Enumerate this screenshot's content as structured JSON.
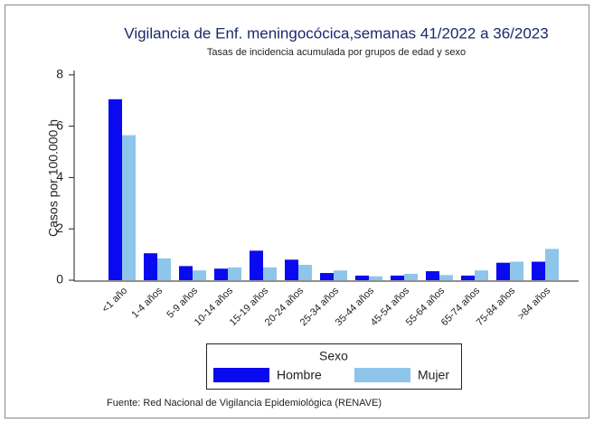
{
  "chart_data": {
    "type": "bar",
    "title": "Vigilancia de Enf. meningocócica,semanas 41/2022 a 36/2023",
    "subtitle": "Tasas de incidencia acumulada por grupos de edad y sexo",
    "y_label": "Casos por 100.000 h",
    "categories": [
      "<1 año",
      "1-4 años",
      "5-9 años",
      "10-14 años",
      "15-19 años",
      "20-24 años",
      "25-34 años",
      "35-44 años",
      "45-54 años",
      "55-64 años",
      "65-74 años",
      "75-84 años",
      ">84 años"
    ],
    "series": [
      {
        "name": "Hombre",
        "color": "#0a0af0",
        "values": [
          7.05,
          1.05,
          0.55,
          0.45,
          1.15,
          0.8,
          0.28,
          0.18,
          0.18,
          0.35,
          0.18,
          0.68,
          0.72
        ]
      },
      {
        "name": "Mujer",
        "color": "#8ec5ea",
        "values": [
          5.65,
          0.85,
          0.38,
          0.5,
          0.5,
          0.6,
          0.38,
          0.15,
          0.25,
          0.2,
          0.38,
          0.72,
          1.22
        ]
      }
    ],
    "ylim": [
      0,
      8.1
    ],
    "yticks": [
      0,
      2,
      4,
      6,
      8
    ],
    "grid": false,
    "legend_title": "Sexo",
    "legend_position": "bottom",
    "source": "Fuente: Red Nacional de Vigilancia Epidemiológica (RENAVE)"
  }
}
